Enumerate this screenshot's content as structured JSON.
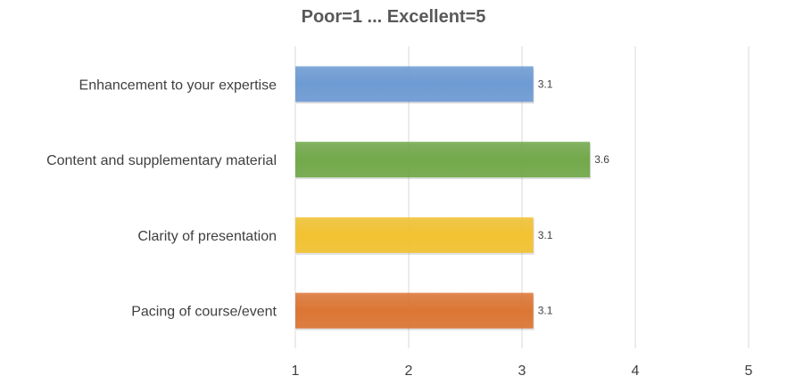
{
  "chart_data": {
    "type": "bar",
    "orientation": "horizontal",
    "title": "Poor=1 ... Excellent=5",
    "categories": [
      "Enhancement to your expertise",
      "Content and supplementary material",
      "Clarity of presentation",
      "Pacing of course/event"
    ],
    "values": [
      3.1,
      3.6,
      3.1,
      3.1
    ],
    "data_labels": [
      "3.1",
      "3.6",
      "3.1",
      "3.1"
    ],
    "colors": [
      "#6E9BD4",
      "#72A94A",
      "#F2C232",
      "#DC7634"
    ],
    "xlim": [
      1,
      5
    ],
    "x_ticks": [
      "1",
      "2",
      "3",
      "4",
      "5"
    ],
    "xlabel": "",
    "ylabel": "",
    "grid": "vertical",
    "legend": "none"
  }
}
